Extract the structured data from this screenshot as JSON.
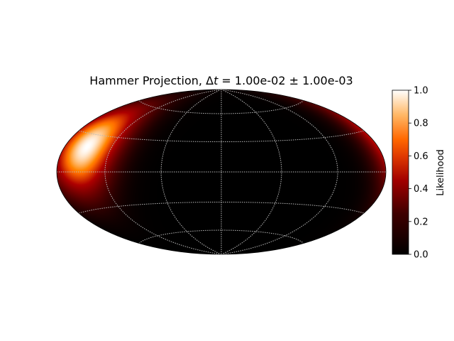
{
  "chart_data": {
    "type": "heatmap",
    "projection": "hammer",
    "title": "Hammer Projection, Δt = 1.00e-02 ± 1.00e-03",
    "title_parts": {
      "prefix": "Hammer Projection, ",
      "delta": "Δ",
      "t": "t",
      "rest": " = 1.00e-02 ± 1.00e-03"
    },
    "grid": true,
    "graticule": {
      "meridians_deg": [
        -180,
        -120,
        -60,
        0,
        60,
        120,
        180
      ],
      "parallels_deg": [
        -60,
        -30,
        0,
        30,
        60
      ]
    },
    "likelihood_peak": {
      "lon_deg": -150,
      "lat_deg": 20,
      "sigma_deg": 25,
      "value": 1.0
    },
    "colormap": "gist_heat",
    "colorbar": {
      "label": "Likelihood",
      "range": [
        0.0,
        1.0
      ],
      "ticks": [
        "0.0",
        "0.2",
        "0.4",
        "0.6",
        "0.8",
        "1.0"
      ]
    },
    "colors": {
      "background": "#ffffff",
      "grid": "#b8b8b8",
      "outline": "#000000"
    }
  }
}
